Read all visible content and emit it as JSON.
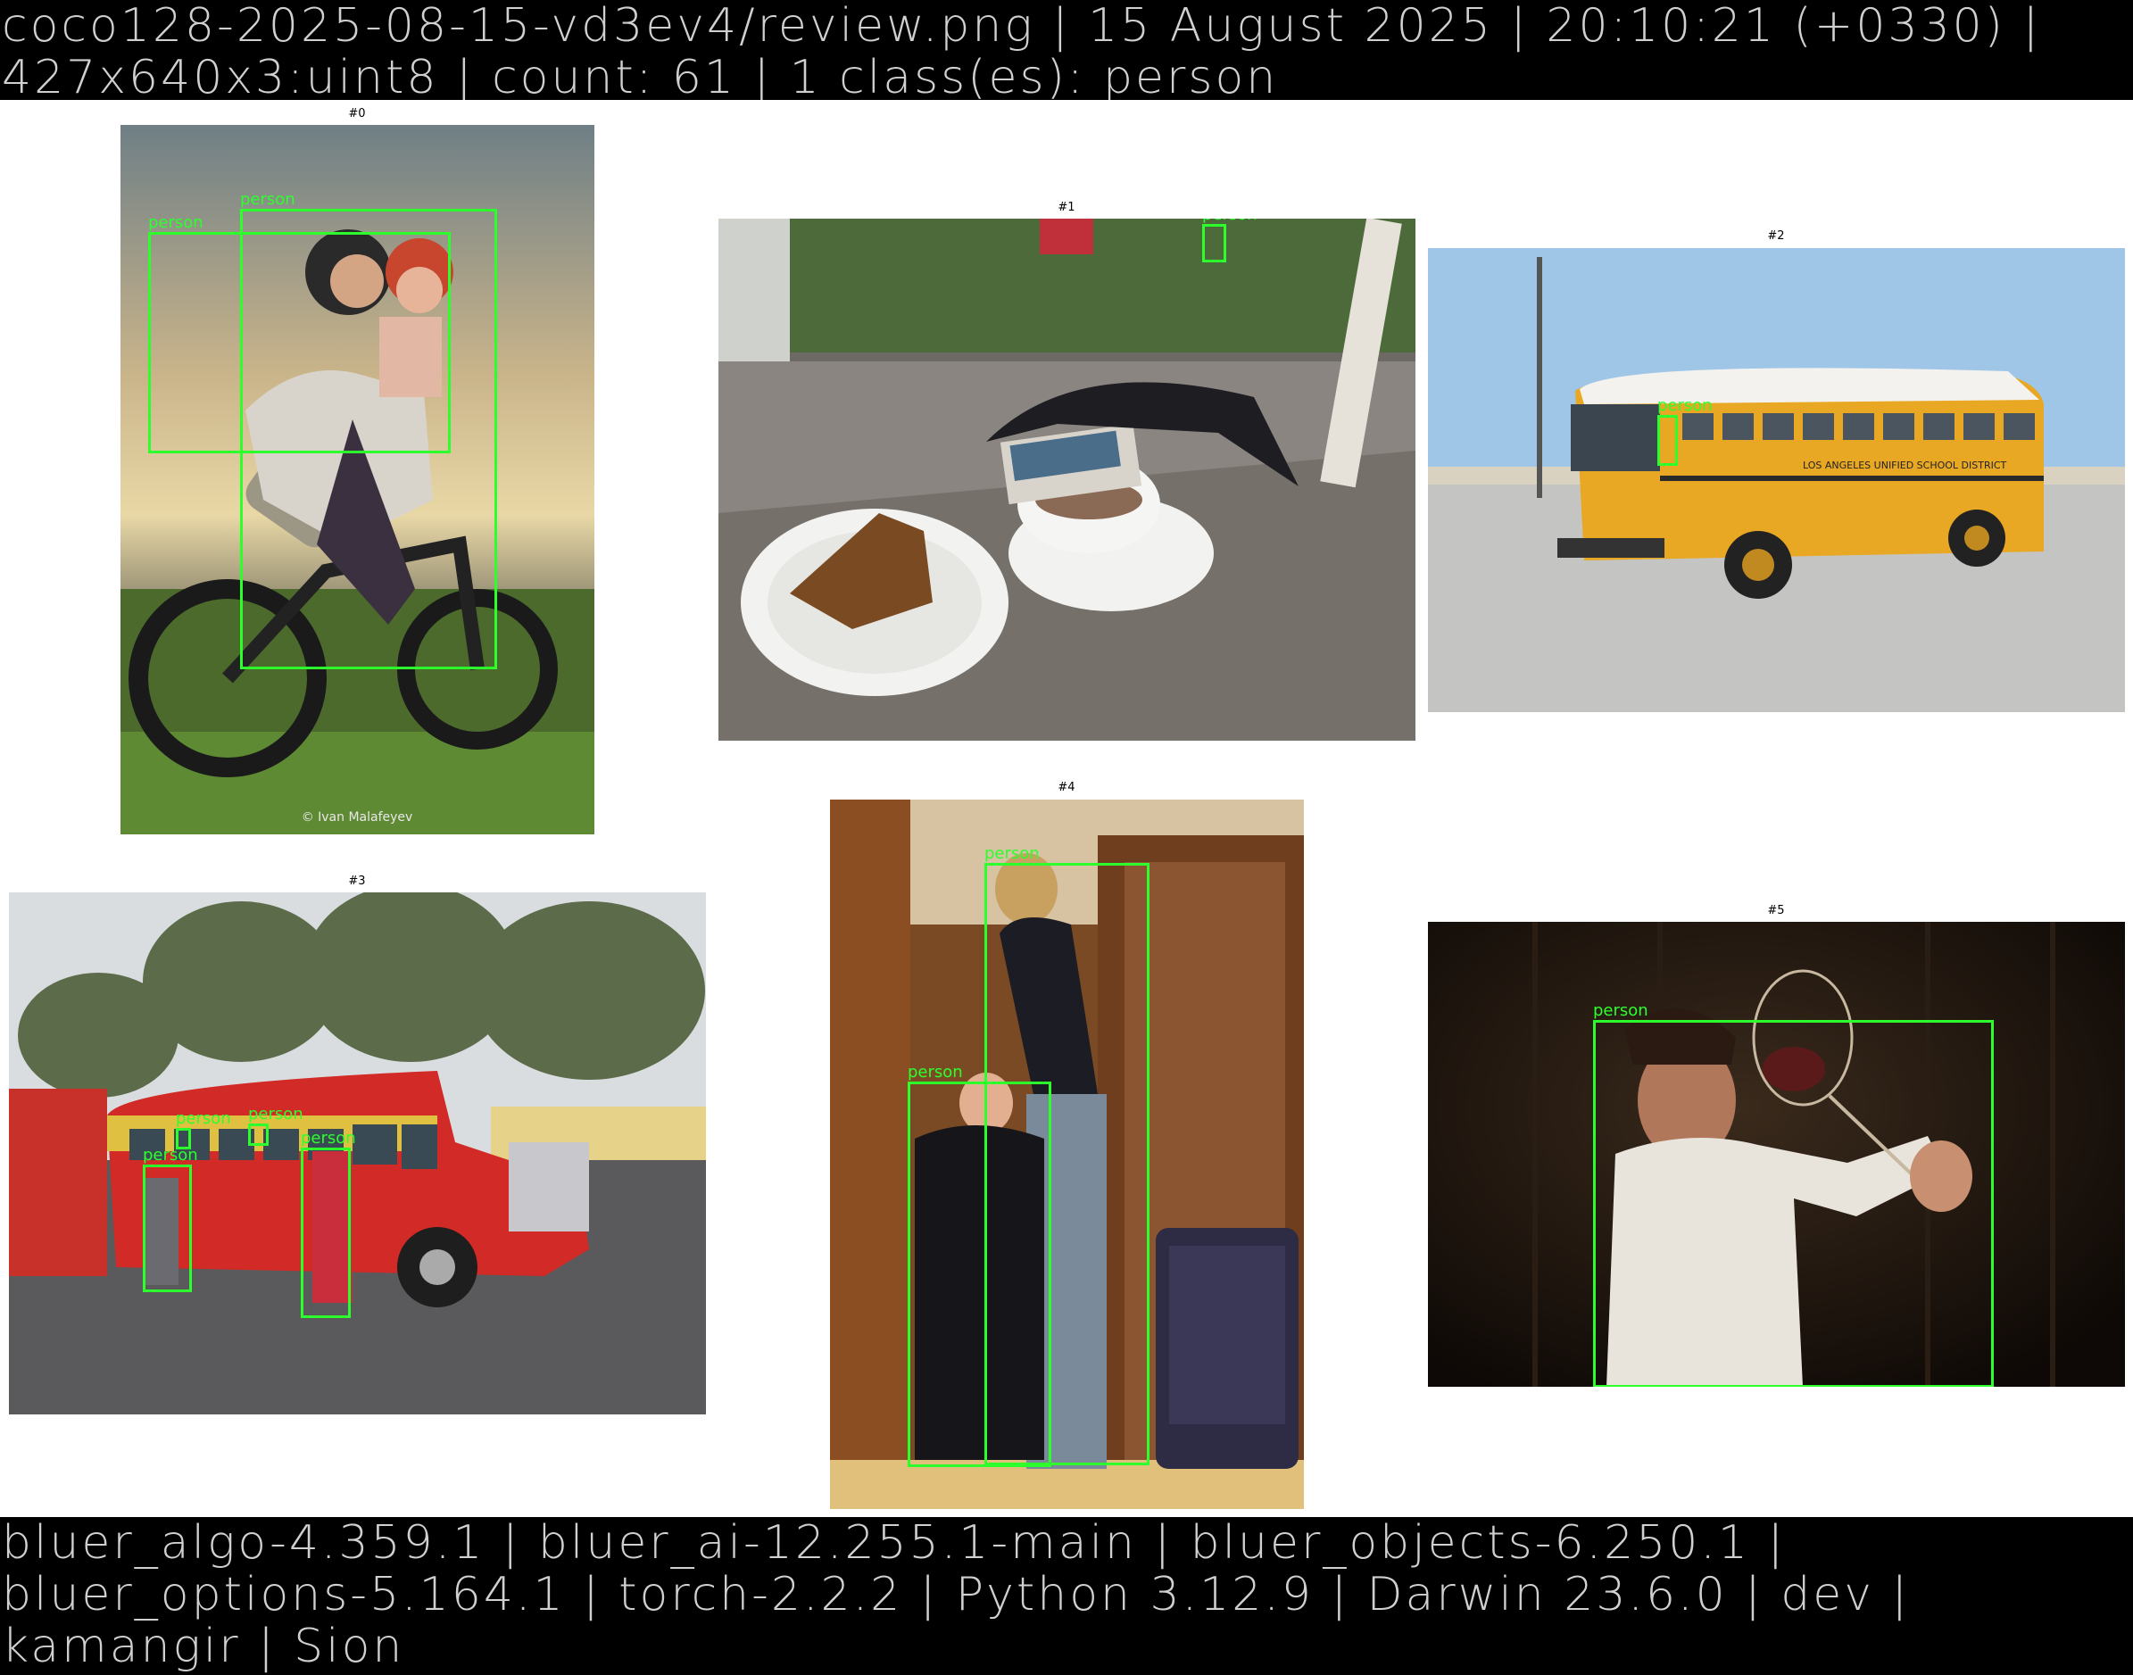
{
  "header": {
    "line1": "coco128-2025-08-15-vd3ev4/review.png | 15 August 2025 | 20:10:21 (+0330) |",
    "line2": "427x640x3:uint8 | count: 61 |  1 class(es): person"
  },
  "footer": {
    "line1": "bluer_algo-4.359.1 | bluer_ai-12.255.1-main | bluer_objects-6.250.1 |",
    "line2": "bluer_options-5.164.1 | torch-2.2.2 | Python 3.12.9 | Darwin 23.6.0 | dev |",
    "line3": "kamangir | Sion"
  },
  "detection_label": "person",
  "box_color": "#2cff2c",
  "images": [
    {
      "caption": "#0",
      "scene": "couple on motorcycle",
      "watermark": "© Ivan Malafeyev",
      "detections": 2
    },
    {
      "caption": "#1",
      "scene": "cake and coffee on outdoor table",
      "detections": 1
    },
    {
      "caption": "#2",
      "scene": "yellow school bus in parking lot",
      "bus_text": "LOS ANGELES UNIFIED SCHOOL DISTRICT",
      "detections": 1
    },
    {
      "caption": "#3",
      "scene": "red chicken bus with people",
      "detections": 4
    },
    {
      "caption": "#4",
      "scene": "two people in hallway by stairs",
      "detections": 2
    },
    {
      "caption": "#5",
      "scene": "man holding wine glass",
      "detections": 1
    }
  ]
}
